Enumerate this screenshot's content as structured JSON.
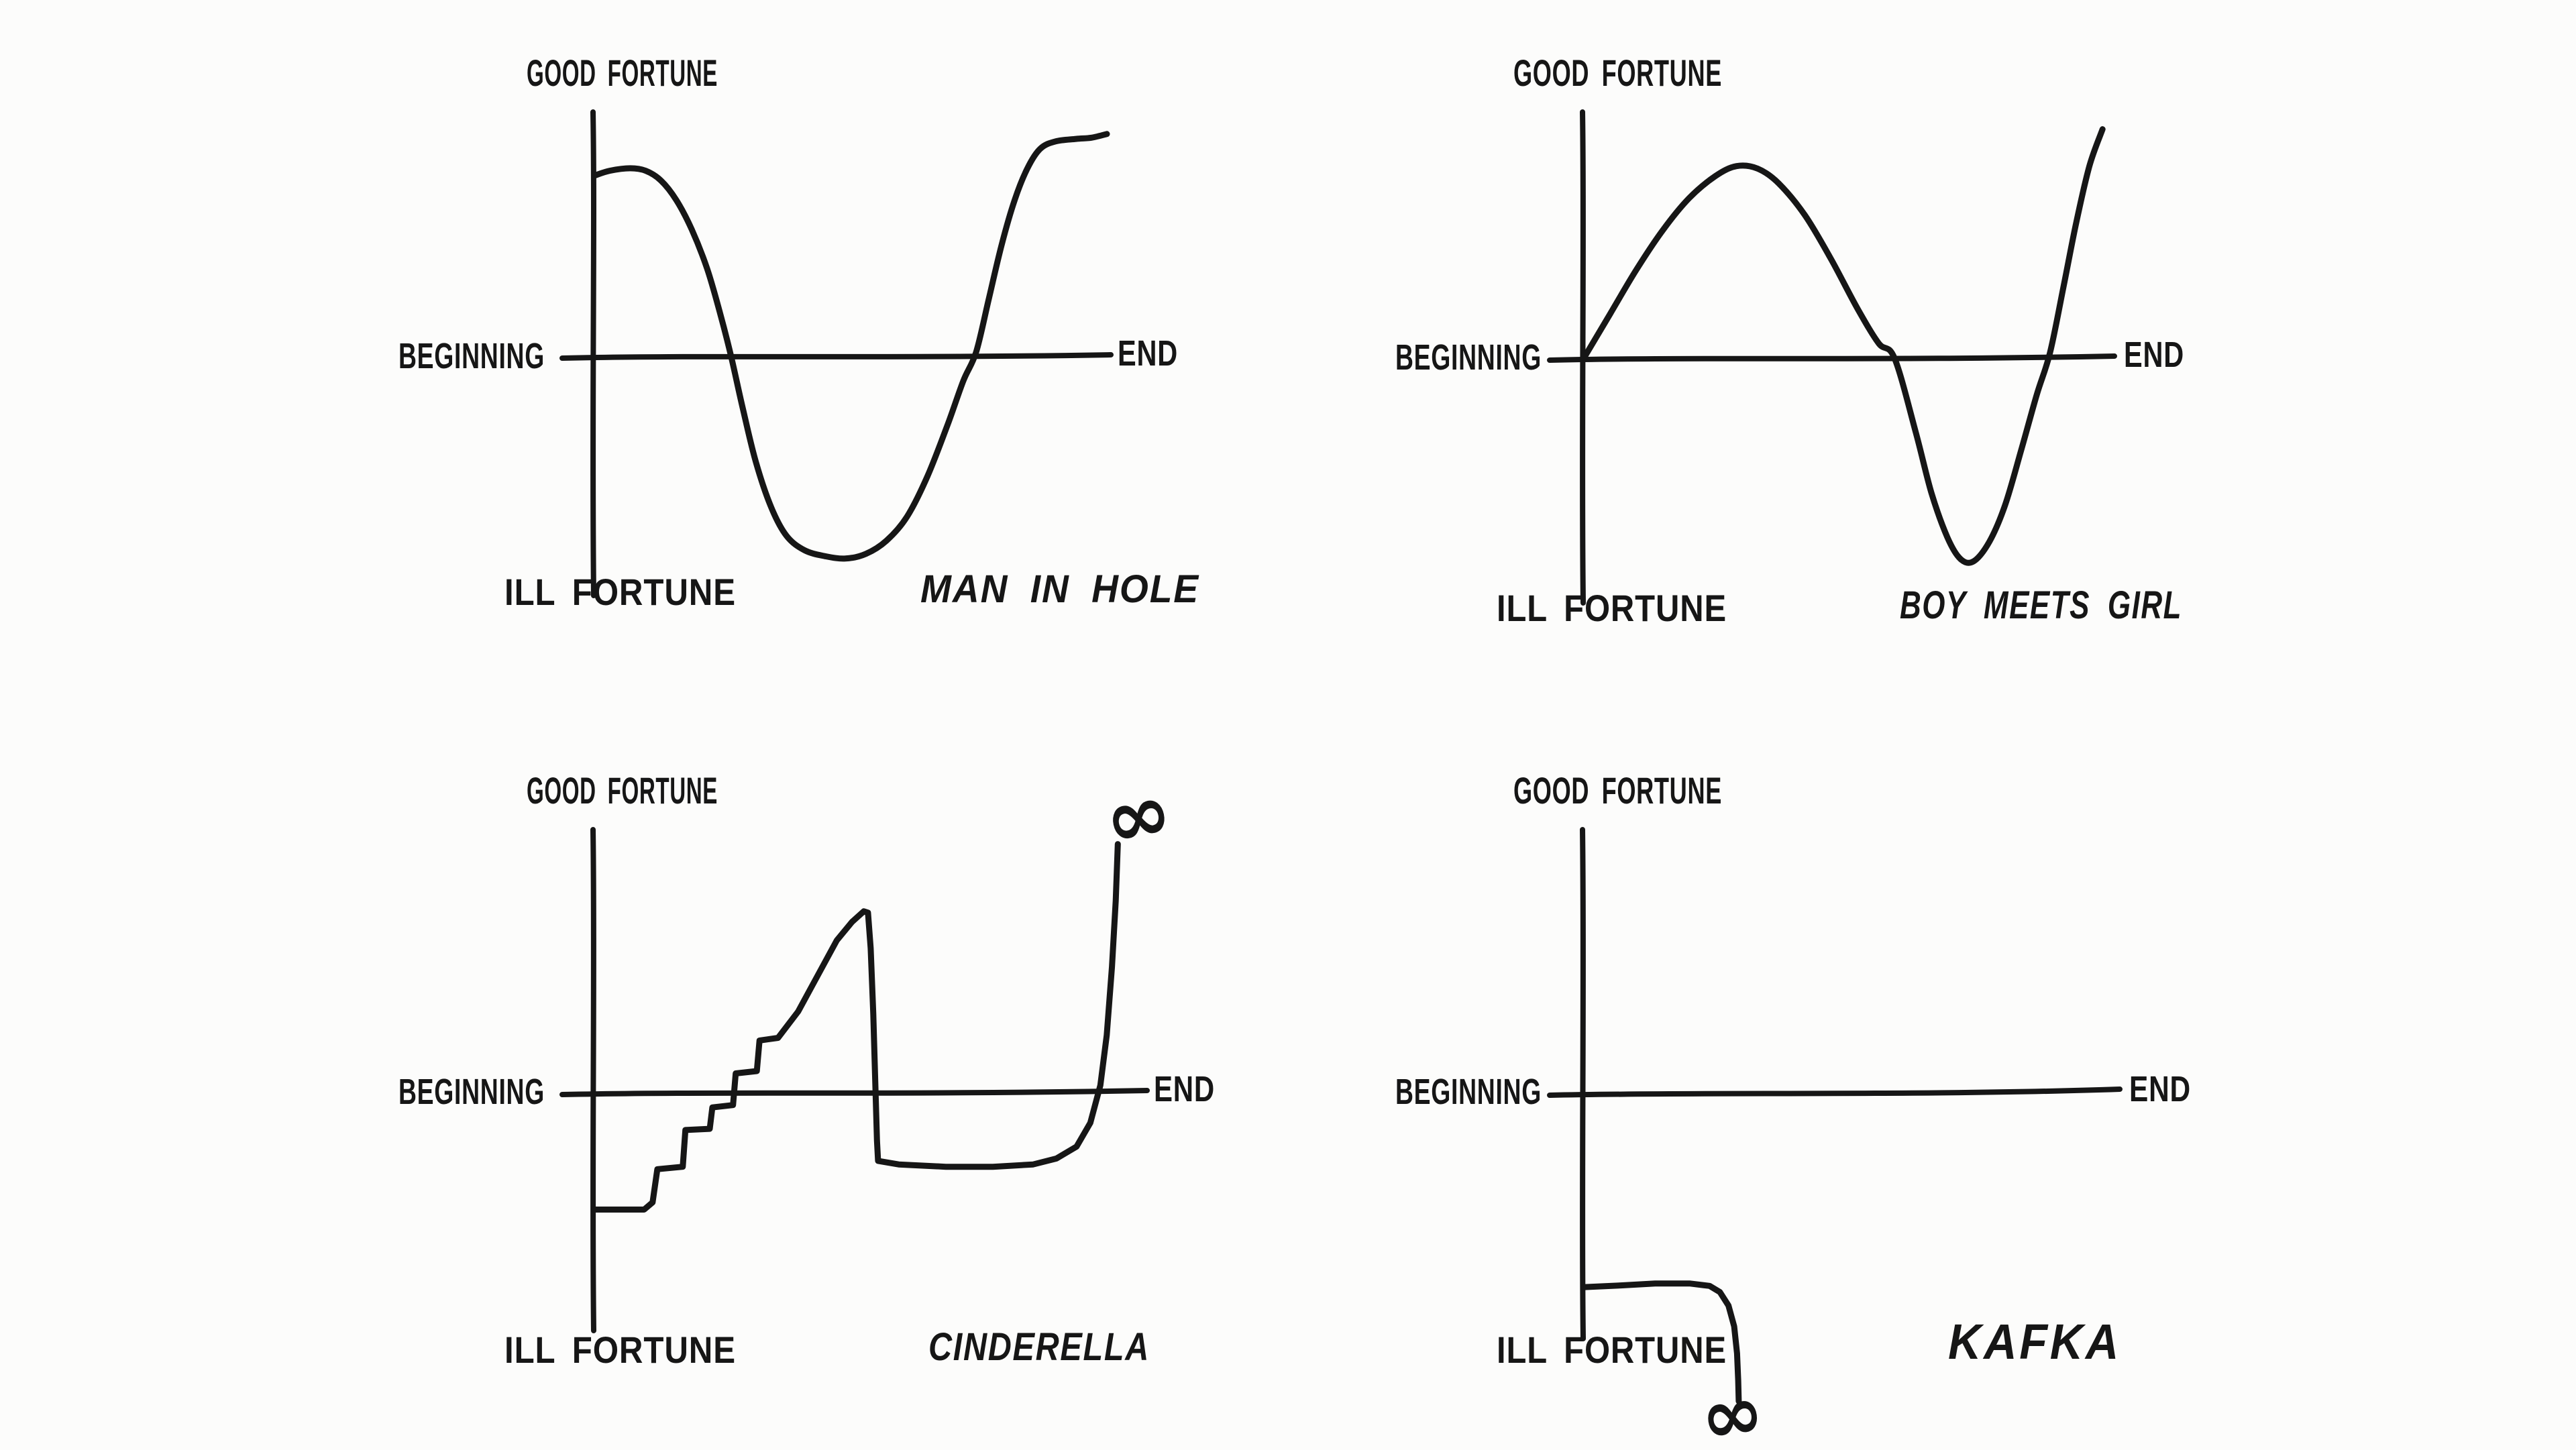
{
  "page": {
    "background": "#fcfcfb",
    "ink_color": "#161616",
    "description_visible_text_only": true
  },
  "chart_data": [
    {
      "id": "man-in-hole",
      "type": "line",
      "title": "MAN IN HOLE",
      "labels": {
        "good": "GOOD FORTUNE",
        "ill": "ILL FORTUNE",
        "begin": "BEGINNING",
        "end": "END"
      },
      "x_axis": {
        "left_label": "BEGINNING",
        "right_label": "END",
        "range": [
          0,
          1
        ]
      },
      "y_axis": {
        "top_label": "GOOD FORTUNE",
        "bottom_label": "ILL FORTUNE",
        "range": [
          -1,
          1
        ]
      },
      "grid": false,
      "infinity": null,
      "points": [
        [
          0.0,
          0.74
        ],
        [
          0.03,
          0.76
        ],
        [
          0.07,
          0.77
        ],
        [
          0.1,
          0.76
        ],
        [
          0.13,
          0.72
        ],
        [
          0.16,
          0.64
        ],
        [
          0.19,
          0.52
        ],
        [
          0.22,
          0.36
        ],
        [
          0.245,
          0.18
        ],
        [
          0.267,
          0.0
        ],
        [
          0.29,
          -0.22
        ],
        [
          0.315,
          -0.44
        ],
        [
          0.345,
          -0.63
        ],
        [
          0.375,
          -0.75
        ],
        [
          0.41,
          -0.81
        ],
        [
          0.45,
          -0.835
        ],
        [
          0.49,
          -0.845
        ],
        [
          0.53,
          -0.825
        ],
        [
          0.57,
          -0.77
        ],
        [
          0.61,
          -0.67
        ],
        [
          0.65,
          -0.5
        ],
        [
          0.69,
          -0.28
        ],
        [
          0.72,
          -0.1
        ],
        [
          0.745,
          0.02
        ],
        [
          0.77,
          0.24
        ],
        [
          0.795,
          0.46
        ],
        [
          0.82,
          0.64
        ],
        [
          0.845,
          0.77
        ],
        [
          0.87,
          0.85
        ],
        [
          0.9,
          0.88
        ],
        [
          0.94,
          0.89
        ],
        [
          0.97,
          0.895
        ],
        [
          1.0,
          0.91
        ]
      ]
    },
    {
      "id": "boy-meets-girl",
      "type": "line",
      "title": "BOY MEETS GIRL",
      "labels": {
        "good": "GOOD FORTUNE",
        "ill": "ILL FORTUNE",
        "begin": "BEGINNING",
        "end": "END"
      },
      "x_axis": {
        "left_label": "BEGINNING",
        "right_label": "END",
        "range": [
          0,
          1
        ]
      },
      "y_axis": {
        "top_label": "GOOD FORTUNE",
        "bottom_label": "ILL FORTUNE",
        "range": [
          -1,
          1
        ]
      },
      "grid": false,
      "infinity": null,
      "points": [
        [
          0.0,
          0.0
        ],
        [
          0.05,
          0.18
        ],
        [
          0.1,
          0.36
        ],
        [
          0.15,
          0.52
        ],
        [
          0.2,
          0.65
        ],
        [
          0.25,
          0.74
        ],
        [
          0.29,
          0.78
        ],
        [
          0.33,
          0.77
        ],
        [
          0.37,
          0.71
        ],
        [
          0.42,
          0.58
        ],
        [
          0.47,
          0.4
        ],
        [
          0.52,
          0.2
        ],
        [
          0.56,
          0.06
        ],
        [
          0.59,
          0.0
        ],
        [
          0.63,
          -0.3
        ],
        [
          0.66,
          -0.55
        ],
        [
          0.69,
          -0.73
        ],
        [
          0.715,
          -0.82
        ],
        [
          0.74,
          -0.83
        ],
        [
          0.77,
          -0.75
        ],
        [
          0.8,
          -0.6
        ],
        [
          0.83,
          -0.38
        ],
        [
          0.86,
          -0.15
        ],
        [
          0.885,
          0.02
        ],
        [
          0.91,
          0.28
        ],
        [
          0.935,
          0.55
        ],
        [
          0.96,
          0.78
        ],
        [
          0.985,
          0.93
        ]
      ]
    },
    {
      "id": "cinderella",
      "type": "line",
      "title": "CINDERELLA",
      "labels": {
        "good": "GOOD FORTUNE",
        "ill": "ILL FORTUNE",
        "begin": "BEGINNING",
        "end": "END"
      },
      "x_axis": {
        "left_label": "BEGINNING",
        "right_label": "END",
        "range": [
          0,
          1
        ]
      },
      "y_axis": {
        "top_label": "GOOD FORTUNE",
        "bottom_label": "ILL FORTUNE",
        "range": [
          -1,
          1
        ]
      },
      "grid": false,
      "infinity": {
        "symbol": "∞",
        "position": "above curve end (story rises to infinite good fortune)"
      },
      "points": [
        [
          0.0,
          -0.49
        ],
        [
          0.05,
          -0.49
        ],
        [
          0.094,
          -0.49
        ],
        [
          0.11,
          -0.46
        ],
        [
          0.119,
          -0.32
        ],
        [
          0.167,
          -0.31
        ],
        [
          0.172,
          -0.155
        ],
        [
          0.218,
          -0.15
        ],
        [
          0.223,
          -0.06
        ],
        [
          0.262,
          -0.05
        ],
        [
          0.267,
          0.075
        ],
        [
          0.307,
          0.084
        ],
        [
          0.312,
          0.2
        ],
        [
          0.347,
          0.21
        ],
        [
          0.385,
          0.31
        ],
        [
          0.423,
          0.45
        ],
        [
          0.458,
          0.58
        ],
        [
          0.487,
          0.65
        ],
        [
          0.509,
          0.69
        ],
        [
          0.517,
          0.685
        ],
        [
          0.522,
          0.55
        ],
        [
          0.527,
          0.3
        ],
        [
          0.531,
          0.02
        ],
        [
          0.534,
          -0.2
        ],
        [
          0.536,
          -0.285
        ],
        [
          0.575,
          -0.3
        ],
        [
          0.664,
          -0.31
        ],
        [
          0.753,
          -0.31
        ],
        [
          0.829,
          -0.3
        ],
        [
          0.873,
          -0.275
        ],
        [
          0.911,
          -0.225
        ],
        [
          0.937,
          -0.125
        ],
        [
          0.956,
          0.03
        ],
        [
          0.968,
          0.22
        ],
        [
          0.978,
          0.48
        ],
        [
          0.985,
          0.73
        ],
        [
          0.989,
          0.945
        ]
      ]
    },
    {
      "id": "kafka",
      "type": "line",
      "title": "KAFKA",
      "labels": {
        "good": "GOOD FORTUNE",
        "ill": "ILL FORTUNE",
        "begin": "BEGINNING",
        "end": "END"
      },
      "x_axis": {
        "left_label": "BEGINNING",
        "right_label": "END",
        "range": [
          0,
          1
        ]
      },
      "y_axis": {
        "top_label": "GOOD FORTUNE",
        "bottom_label": "ILL FORTUNE",
        "range": [
          -1,
          1
        ]
      },
      "grid": false,
      "infinity": {
        "symbol": "∞",
        "position": "below curve end (story plunges to infinite ill fortune)"
      },
      "points": [
        [
          0.067,
          -0.79
        ],
        [
          0.13,
          -0.783
        ],
        [
          0.19,
          -0.775
        ],
        [
          0.25,
          -0.775
        ],
        [
          0.285,
          -0.785
        ],
        [
          0.303,
          -0.81
        ],
        [
          0.318,
          -0.865
        ],
        [
          0.328,
          -0.95
        ],
        [
          0.333,
          -1.06
        ],
        [
          0.335,
          -1.17
        ],
        [
          0.336,
          -1.255
        ]
      ]
    }
  ]
}
